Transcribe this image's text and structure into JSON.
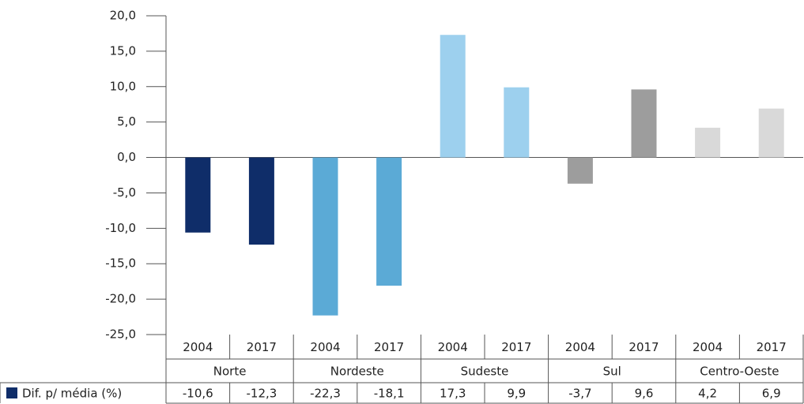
{
  "chart_data": {
    "type": "bar",
    "categories": [
      "2004",
      "2017",
      "2004",
      "2017",
      "2004",
      "2017",
      "2004",
      "2017",
      "2004",
      "2017"
    ],
    "groups": [
      "Norte",
      "Nordeste",
      "Sudeste",
      "Sul",
      "Centro-Oeste"
    ],
    "series": [
      {
        "name": "Dif. p/ média (%)",
        "color": "#0f2d69",
        "values": [
          -10.6,
          -12.3,
          -22.3,
          -18.1,
          17.3,
          9.9,
          -3.7,
          9.6,
          4.2,
          6.9
        ],
        "value_labels": [
          "-10,6",
          "-12,3",
          "-22,3",
          "-18,1",
          "17,3",
          "9,9",
          "-3,7",
          "9,6",
          "4,2",
          "6,9"
        ],
        "colors": [
          "#0f2d69",
          "#0f2d69",
          "#5baad6",
          "#5baad6",
          "#9dd0ee",
          "#9dd0ee",
          "#9d9d9d",
          "#9d9d9d",
          "#d9d9d9",
          "#d9d9d9"
        ]
      }
    ],
    "ylim": [
      -25,
      20
    ],
    "yticks": [
      {
        "value": -25,
        "label": "-25,0"
      },
      {
        "value": -20,
        "label": "-20,0"
      },
      {
        "value": -15,
        "label": "-15,0"
      },
      {
        "value": -10,
        "label": "-10,0"
      },
      {
        "value": -5,
        "label": "-5,0"
      },
      {
        "value": 0,
        "label": "0,0"
      },
      {
        "value": 5,
        "label": "5,0"
      },
      {
        "value": 10,
        "label": "10,0"
      },
      {
        "value": 15,
        "label": "15,0"
      },
      {
        "value": 20,
        "label": "20,0"
      }
    ],
    "grid": false
  }
}
